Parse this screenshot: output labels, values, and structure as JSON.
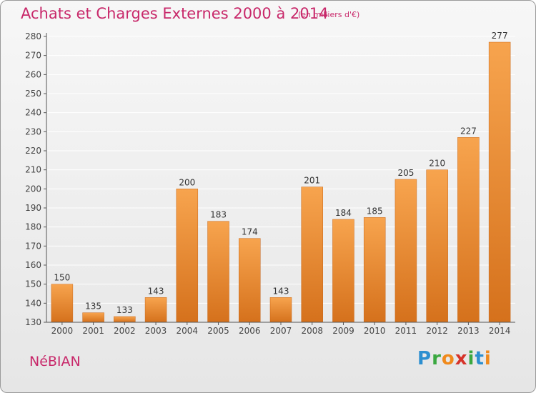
{
  "header": {
    "title": "Achats et Charges Externes 2000 à 2014",
    "subtitle": "(en milliers d'€)"
  },
  "footer": {
    "commune": "NéBIAN",
    "logo": [
      "P",
      "r",
      "o",
      "x",
      "i",
      "t",
      "i"
    ]
  },
  "colors": {
    "accent": "#c8286a",
    "bar_light": "#f7a44e",
    "bar_dark": "#d5711c",
    "grid": "#ffffff"
  },
  "chart_data": {
    "type": "bar",
    "title": "Achats et Charges Externes 2000 à 2014",
    "subtitle": "(en milliers d'€)",
    "categories": [
      "2000",
      "2001",
      "2002",
      "2003",
      "2004",
      "2005",
      "2006",
      "2007",
      "2008",
      "2009",
      "2010",
      "2011",
      "2012",
      "2013",
      "2014"
    ],
    "values": [
      150,
      135,
      133,
      143,
      200,
      183,
      174,
      143,
      201,
      184,
      185,
      205,
      210,
      227,
      277
    ],
    "ylim": [
      130,
      280
    ],
    "yticks": [
      130,
      140,
      150,
      160,
      170,
      180,
      190,
      200,
      210,
      220,
      230,
      240,
      250,
      260,
      270,
      280
    ],
    "grid": true,
    "data_labels": true,
    "xlabel": "",
    "ylabel": ""
  }
}
